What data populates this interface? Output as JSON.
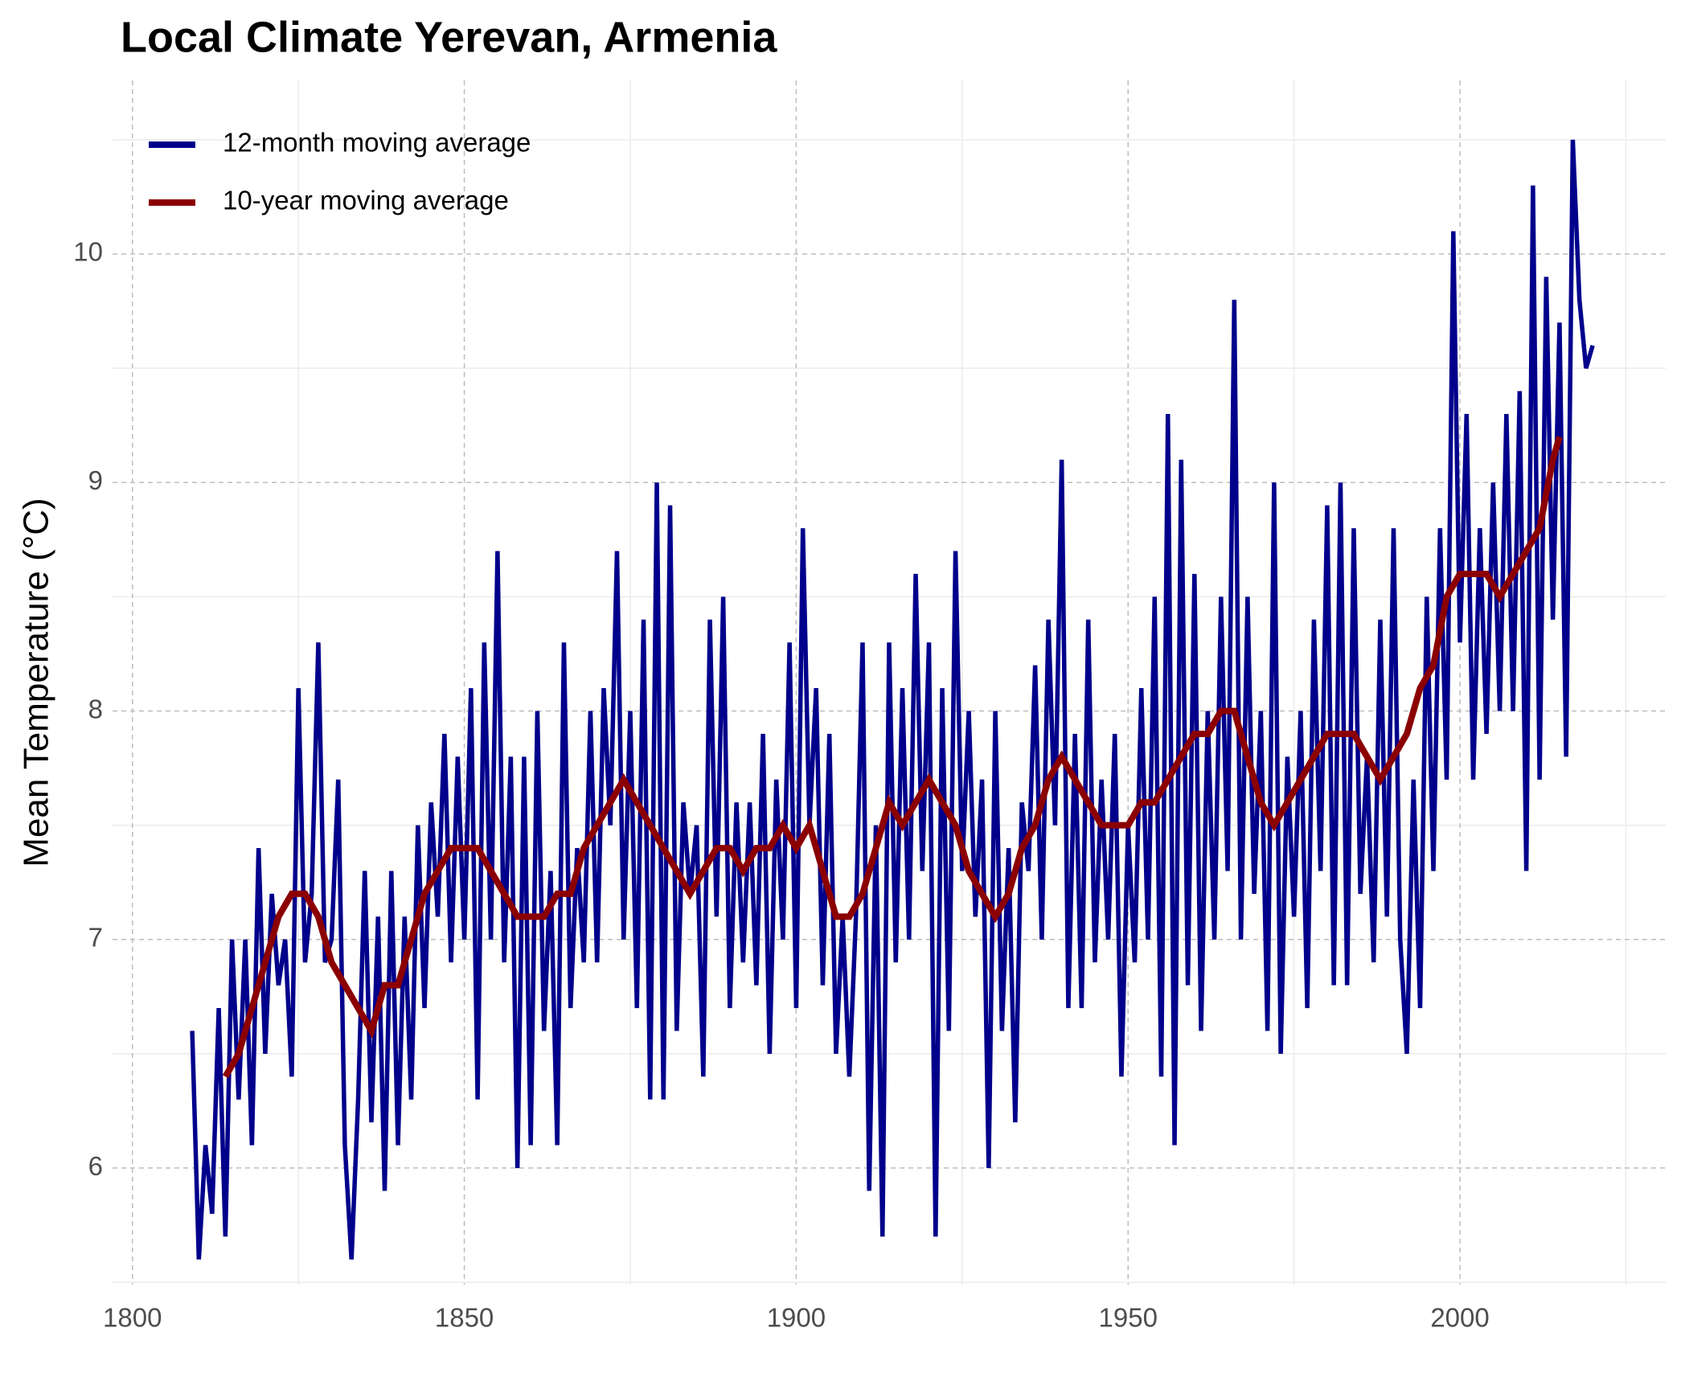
{
  "chart_data": {
    "type": "line",
    "title": "Local Climate Yerevan, Armenia",
    "y_label": "Mean Temperature (°C)",
    "xlim": [
      1797,
      2031
    ],
    "ylim": [
      5.49,
      10.76
    ],
    "xticks": [
      1800,
      1850,
      1900,
      1950,
      2000
    ],
    "yticks": [
      6,
      7,
      8,
      9,
      10
    ],
    "x_minor_ticks": [
      1825,
      1875,
      1925,
      1975,
      2025
    ],
    "y_minor_ticks": [
      5.5,
      6.5,
      7.5,
      8.5,
      9.5,
      10.5
    ],
    "grid": true,
    "legend": "top-left",
    "series": [
      {
        "name": "12-month moving average",
        "color": "#00008b",
        "x": [
          1809,
          1810,
          1811,
          1812,
          1813,
          1814,
          1815,
          1816,
          1817,
          1818,
          1819,
          1820,
          1821,
          1822,
          1823,
          1824,
          1825,
          1826,
          1827,
          1828,
          1829,
          1830,
          1831,
          1832,
          1833,
          1834,
          1835,
          1836,
          1837,
          1838,
          1839,
          1840,
          1841,
          1842,
          1843,
          1844,
          1845,
          1846,
          1847,
          1848,
          1849,
          1850,
          1851,
          1852,
          1853,
          1854,
          1855,
          1856,
          1857,
          1858,
          1859,
          1860,
          1861,
          1862,
          1863,
          1864,
          1865,
          1866,
          1867,
          1868,
          1869,
          1870,
          1871,
          1872,
          1873,
          1874,
          1875,
          1876,
          1877,
          1878,
          1879,
          1880,
          1881,
          1882,
          1883,
          1884,
          1885,
          1886,
          1887,
          1888,
          1889,
          1890,
          1891,
          1892,
          1893,
          1894,
          1895,
          1896,
          1897,
          1898,
          1899,
          1900,
          1901,
          1902,
          1903,
          1904,
          1905,
          1906,
          1907,
          1908,
          1909,
          1910,
          1911,
          1912,
          1913,
          1914,
          1915,
          1916,
          1917,
          1918,
          1919,
          1920,
          1921,
          1922,
          1923,
          1924,
          1925,
          1926,
          1927,
          1928,
          1929,
          1930,
          1931,
          1932,
          1933,
          1934,
          1935,
          1936,
          1937,
          1938,
          1939,
          1940,
          1941,
          1942,
          1943,
          1944,
          1945,
          1946,
          1947,
          1948,
          1949,
          1950,
          1951,
          1952,
          1953,
          1954,
          1955,
          1956,
          1957,
          1958,
          1959,
          1960,
          1961,
          1962,
          1963,
          1964,
          1965,
          1966,
          1967,
          1968,
          1969,
          1970,
          1971,
          1972,
          1973,
          1974,
          1975,
          1976,
          1977,
          1978,
          1979,
          1980,
          1981,
          1982,
          1983,
          1984,
          1985,
          1986,
          1987,
          1988,
          1989,
          1990,
          1991,
          1992,
          1993,
          1994,
          1995,
          1996,
          1997,
          1998,
          1999,
          2000,
          2001,
          2002,
          2003,
          2004,
          2005,
          2006,
          2007,
          2008,
          2009,
          2010,
          2011,
          2012,
          2013,
          2014,
          2015,
          2016,
          2017,
          2018,
          2019,
          2020
        ],
        "values": [
          6.6,
          5.6,
          6.1,
          5.8,
          6.7,
          5.7,
          7.0,
          6.3,
          7.0,
          6.1,
          7.4,
          6.5,
          7.2,
          6.8,
          7.0,
          6.4,
          8.1,
          6.9,
          7.2,
          8.3,
          6.9,
          7.0,
          7.7,
          6.1,
          5.6,
          6.3,
          7.3,
          6.2,
          7.1,
          5.9,
          7.3,
          6.1,
          7.1,
          6.3,
          7.5,
          6.7,
          7.6,
          7.1,
          7.9,
          6.9,
          7.8,
          7.0,
          8.1,
          6.3,
          8.3,
          7.0,
          8.7,
          6.9,
          7.8,
          6.0,
          7.8,
          6.1,
          8.0,
          6.6,
          7.3,
          6.1,
          8.3,
          6.7,
          7.4,
          6.9,
          8.0,
          6.9,
          8.1,
          7.5,
          8.7,
          7.0,
          8.0,
          6.7,
          8.4,
          6.3,
          9.0,
          6.3,
          8.9,
          6.6,
          7.6,
          7.2,
          7.5,
          6.4,
          8.4,
          7.1,
          8.5,
          6.7,
          7.6,
          6.9,
          7.6,
          6.8,
          7.9,
          6.5,
          7.7,
          7.0,
          8.3,
          6.7,
          8.8,
          7.5,
          8.1,
          6.8,
          7.9,
          6.5,
          7.1,
          6.4,
          7.1,
          8.3,
          5.9,
          7.5,
          5.7,
          8.3,
          6.9,
          8.1,
          7.0,
          8.6,
          7.3,
          8.3,
          5.7,
          8.1,
          6.6,
          8.7,
          7.3,
          8.0,
          7.1,
          7.7,
          6.0,
          8.0,
          6.6,
          7.4,
          6.2,
          7.6,
          7.3,
          8.2,
          7.0,
          8.4,
          7.5,
          9.1,
          6.7,
          7.9,
          6.7,
          8.4,
          6.9,
          7.7,
          7.0,
          7.9,
          6.4,
          7.5,
          6.9,
          8.1,
          7.0,
          8.5,
          6.4,
          9.3,
          6.1,
          9.1,
          6.8,
          8.6,
          6.6,
          8.0,
          7.0,
          8.5,
          7.3,
          9.8,
          7.0,
          8.5,
          7.2,
          8.0,
          6.6,
          9.0,
          6.5,
          7.8,
          7.1,
          8.0,
          6.7,
          8.4,
          7.3,
          8.9,
          6.8,
          9.0,
          6.8,
          8.8,
          7.2,
          7.8,
          6.9,
          8.4,
          7.1,
          8.8,
          7.0,
          6.5,
          7.7,
          6.7,
          8.5,
          7.3,
          8.8,
          7.7,
          10.1,
          8.3,
          9.3,
          7.7,
          8.8,
          7.9,
          9.0,
          8.0,
          9.3,
          8.0,
          9.4,
          7.3,
          10.3,
          7.7,
          9.9,
          8.4,
          9.7,
          7.8,
          10.5,
          9.8,
          9.5,
          9.6
        ]
      },
      {
        "name": "10-year moving average",
        "color": "#8b0000",
        "x": [
          1814,
          1816,
          1818,
          1820,
          1822,
          1824,
          1826,
          1828,
          1830,
          1832,
          1834,
          1836,
          1838,
          1840,
          1842,
          1844,
          1846,
          1848,
          1850,
          1852,
          1854,
          1856,
          1858,
          1860,
          1862,
          1864,
          1866,
          1868,
          1870,
          1872,
          1874,
          1876,
          1878,
          1880,
          1882,
          1884,
          1886,
          1888,
          1890,
          1892,
          1894,
          1896,
          1898,
          1900,
          1902,
          1904,
          1906,
          1908,
          1910,
          1912,
          1914,
          1916,
          1918,
          1920,
          1922,
          1924,
          1926,
          1928,
          1930,
          1932,
          1934,
          1936,
          1938,
          1940,
          1942,
          1944,
          1946,
          1948,
          1950,
          1952,
          1954,
          1956,
          1958,
          1960,
          1962,
          1964,
          1966,
          1968,
          1970,
          1972,
          1974,
          1976,
          1978,
          1980,
          1982,
          1984,
          1986,
          1988,
          1990,
          1992,
          1994,
          1996,
          1998,
          2000,
          2002,
          2004,
          2006,
          2008,
          2010,
          2012,
          2014,
          2015
        ],
        "values": [
          6.4,
          6.5,
          6.7,
          6.9,
          7.1,
          7.2,
          7.2,
          7.1,
          6.9,
          6.8,
          6.7,
          6.6,
          6.8,
          6.8,
          7.0,
          7.2,
          7.3,
          7.4,
          7.4,
          7.4,
          7.3,
          7.2,
          7.1,
          7.1,
          7.1,
          7.2,
          7.2,
          7.4,
          7.5,
          7.6,
          7.7,
          7.6,
          7.5,
          7.4,
          7.3,
          7.2,
          7.3,
          7.4,
          7.4,
          7.3,
          7.4,
          7.4,
          7.5,
          7.4,
          7.5,
          7.3,
          7.1,
          7.1,
          7.2,
          7.4,
          7.6,
          7.5,
          7.6,
          7.7,
          7.6,
          7.5,
          7.3,
          7.2,
          7.1,
          7.2,
          7.4,
          7.5,
          7.7,
          7.8,
          7.7,
          7.6,
          7.5,
          7.5,
          7.5,
          7.6,
          7.6,
          7.7,
          7.8,
          7.9,
          7.9,
          8.0,
          8.0,
          7.8,
          7.6,
          7.5,
          7.6,
          7.7,
          7.8,
          7.9,
          7.9,
          7.9,
          7.8,
          7.7,
          7.8,
          7.9,
          8.1,
          8.2,
          8.5,
          8.6,
          8.6,
          8.6,
          8.5,
          8.6,
          8.7,
          8.8,
          9.1,
          9.2
        ]
      }
    ]
  }
}
